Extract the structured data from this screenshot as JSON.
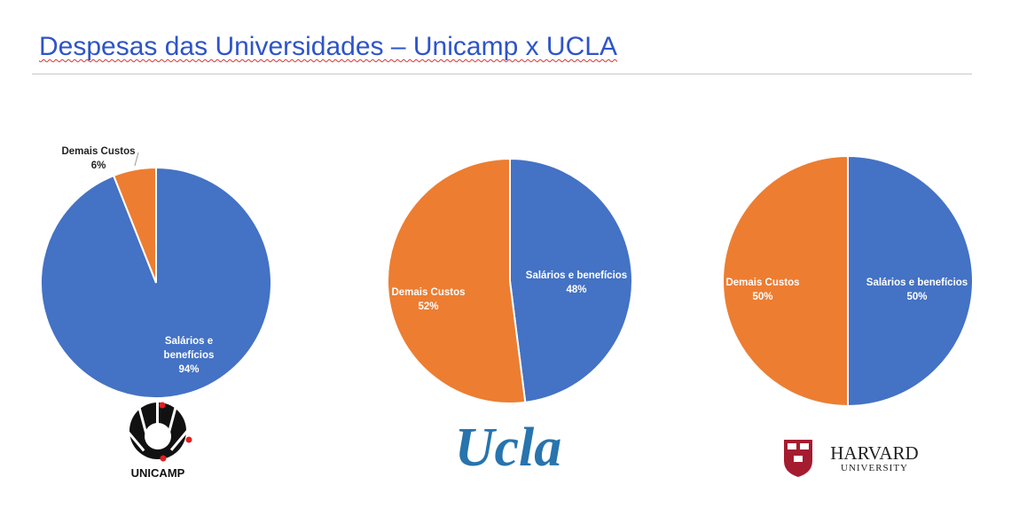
{
  "slide": {
    "title": "Despesas das Universidades – Unicamp x UCLA"
  },
  "colors": {
    "salarios": "#4472c4",
    "demais": "#ed7d31",
    "title": "#2e54c9"
  },
  "chart_data": [
    {
      "type": "pie",
      "university": "Unicamp",
      "slices": [
        {
          "label": "Salários e benefícios",
          "value": 94,
          "value_label": "94%"
        },
        {
          "label": "Demais Custos",
          "value": 6,
          "value_label": "6%"
        }
      ]
    },
    {
      "type": "pie",
      "university": "UCLA",
      "slices": [
        {
          "label": "Salários e benefícios",
          "value": 48,
          "value_label": "48%"
        },
        {
          "label": "Demais Custos",
          "value": 52,
          "value_label": "52%"
        }
      ]
    },
    {
      "type": "pie",
      "university": "Harvard",
      "slices": [
        {
          "label": "Salários e benefícios",
          "value": 50,
          "value_label": "50%"
        },
        {
          "label": "Demais Custos",
          "value": 50,
          "value_label": "50%"
        }
      ]
    }
  ],
  "logos": {
    "unicamp": "UNICAMP",
    "ucla": "Ucla",
    "harvard_line1": "HARVARD",
    "harvard_line2": "UNIVERSITY"
  }
}
